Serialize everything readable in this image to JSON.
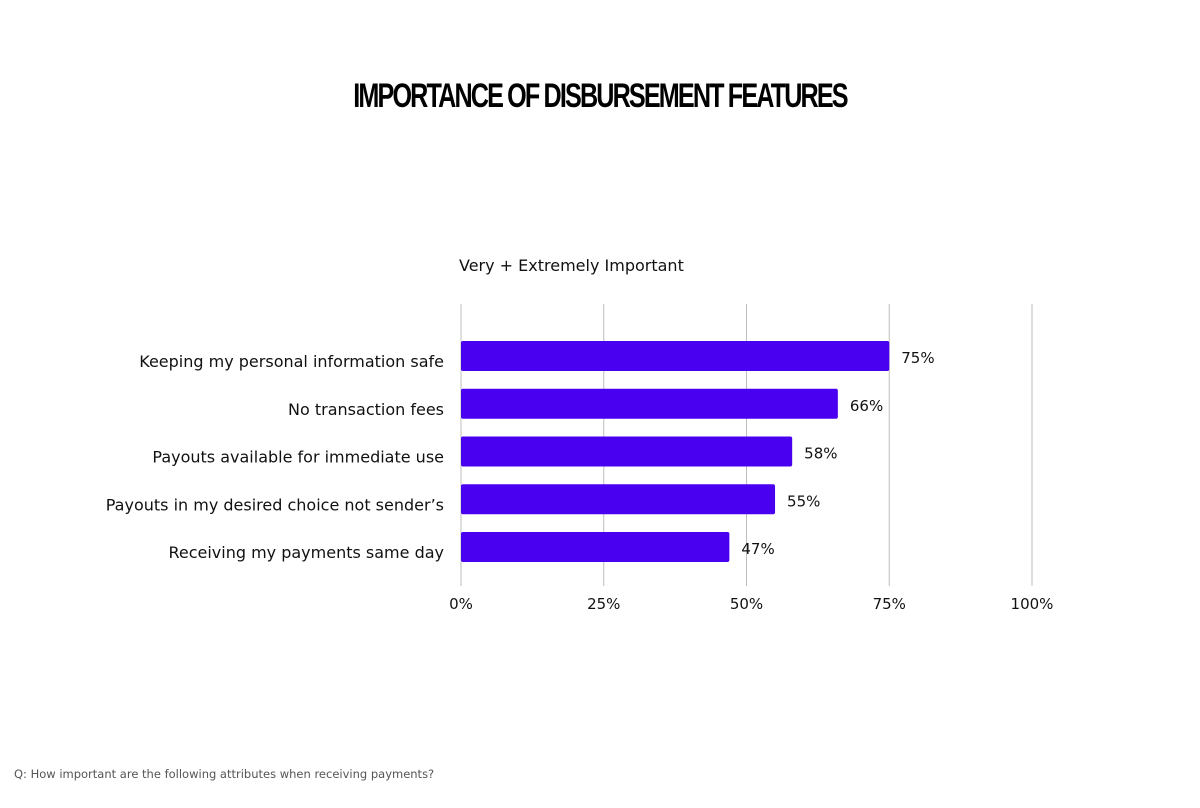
{
  "title": "IMPORTANCE OF DISBURSEMENT FEATURES",
  "subtitle": "Very + Extremely Important",
  "footnote": "Q: How important are the following attributes when receiving payments?",
  "colors": {
    "bar": "#4a00f0",
    "grid": "#bdbdbd",
    "text": "#111111"
  },
  "chart_data": {
    "type": "bar",
    "orientation": "horizontal",
    "categories": [
      "Keeping my personal information safe",
      "No transaction fees",
      "Payouts available for immediate use",
      "Payouts in my desired choice not sender’s",
      "Receiving my payments same day"
    ],
    "values": [
      75,
      66,
      58,
      55,
      47
    ],
    "value_labels": [
      "75%",
      "66%",
      "58%",
      "55%",
      "47%"
    ],
    "xlim": [
      0,
      100
    ],
    "xticks": [
      0,
      25,
      50,
      75,
      100
    ],
    "xtick_labels": [
      "0%",
      "25%",
      "50%",
      "75%",
      "100%"
    ],
    "grid": true,
    "legend": "none"
  }
}
